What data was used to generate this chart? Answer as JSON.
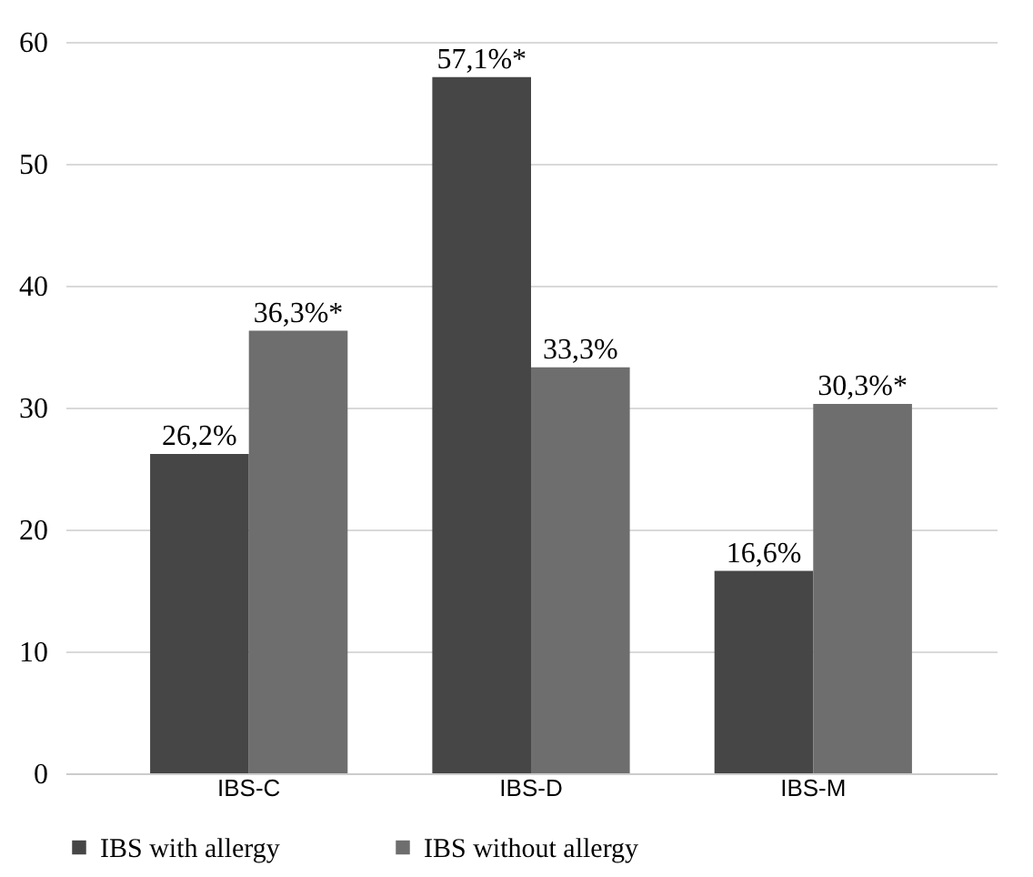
{
  "chart_data": {
    "type": "bar",
    "categories": [
      "IBS-C",
      "IBS-D",
      "IBS-M"
    ],
    "series": [
      {
        "name": "IBS with allergy",
        "color": "#464646",
        "values": [
          26.2,
          57.1,
          16.6
        ],
        "value_labels": [
          "26,2%",
          "57,1%*",
          "16,6%"
        ]
      },
      {
        "name": "IBS without allergy",
        "color": "#6e6e6e",
        "values": [
          36.3,
          33.3,
          30.3
        ],
        "value_labels": [
          "36,3%*",
          "33,3%",
          "30,3%*"
        ]
      }
    ],
    "ylim": [
      0,
      60
    ],
    "yticks": [
      0,
      10,
      20,
      30,
      40,
      50,
      60
    ],
    "grid": "y",
    "legend": "bottom"
  }
}
